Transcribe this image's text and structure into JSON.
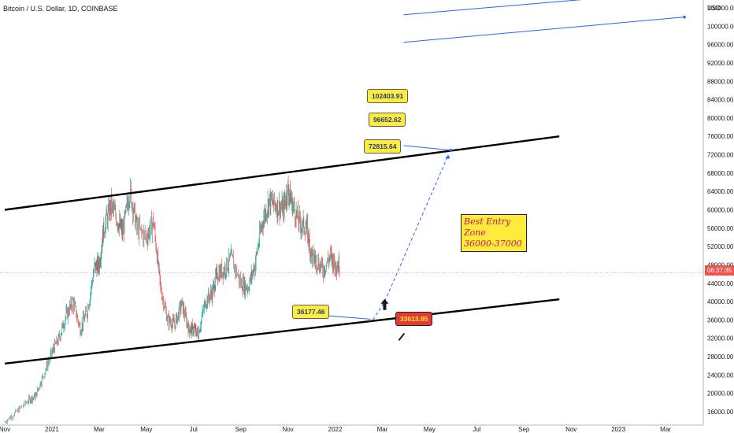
{
  "header": {
    "title": "Bitcoin / U.S. Dollar, 1D, COINBASE"
  },
  "price_axis": {
    "currency_label": "USD",
    "current_label": "06:37:35"
  },
  "annotations": {
    "target_1": "102403.91",
    "target_2": "96652.62",
    "target_3": "72815.64",
    "support_level": "36177.46",
    "stop_level": "33613.85",
    "zone_title": "Best Entry Zone",
    "zone_range": "36000-37000"
  },
  "colors": {
    "channel": "#000000",
    "projection": "#2962ff",
    "callout_fill": "#ffeb3b",
    "stop_fill": "#e53935",
    "zone_text": "#c2185b",
    "up_candle": "#26a69a",
    "down_candle": "#ef5350"
  },
  "chart_data": {
    "type": "line",
    "title": "Bitcoin / U.S. Dollar, 1D, COINBASE",
    "xlabel": "",
    "ylabel": "",
    "ylim": [
      16000,
      108000
    ],
    "y_ticks": [
      "16000.00",
      "20000.00",
      "24000.00",
      "28000.00",
      "32000.00",
      "36000.00",
      "40000.00",
      "44000.00",
      "48000.00",
      "52000.00",
      "56000.00",
      "60000.00",
      "64000.00",
      "68000.00",
      "72000.00",
      "76000.00",
      "80000.00",
      "84000.00",
      "88000.00",
      "92000.00",
      "96000.00",
      "100000.00",
      "104000.00"
    ],
    "y_tick_values": [
      16000,
      20000,
      24000,
      28000,
      32000,
      36000,
      40000,
      44000,
      48000,
      52000,
      56000,
      60000,
      64000,
      68000,
      72000,
      76000,
      80000,
      84000,
      88000,
      92000,
      96000,
      100000,
      104000
    ],
    "x_ticks": [
      "Nov",
      "2021",
      "Mar",
      "May",
      "Jul",
      "Sep",
      "Nov",
      "2022",
      "Mar",
      "May",
      "Jul",
      "Sep",
      "Nov",
      "2023",
      "Mar"
    ],
    "x_tick_values": [
      0,
      2,
      4,
      6,
      8,
      10,
      12,
      14,
      16,
      18,
      20,
      22,
      24,
      26,
      28
    ],
    "series": [
      {
        "x": [
          0,
          0.5,
          1,
          1.3,
          1.6,
          2,
          2.3,
          2.6,
          2.9,
          3.2,
          3.5,
          3.8,
          4.0,
          4.2,
          4.5,
          4.8,
          5.0,
          5.3,
          5.6,
          6.0,
          6.3,
          6.6,
          6.9,
          7.2,
          7.5,
          7.8,
          8.0,
          8.2,
          8.5,
          8.8,
          9.0,
          9.3,
          9.6,
          10.0,
          10.3,
          10.6,
          10.9,
          11.2,
          11.5,
          11.8,
          12.0,
          12.2,
          12.5,
          12.8,
          13.0,
          13.2,
          13.5,
          13.8,
          14.0,
          14.2
        ],
        "values": [
          13800,
          16000,
          18500,
          19400,
          23500,
          29000,
          32000,
          37000,
          40000,
          34000,
          38000,
          47500,
          48000,
          56000,
          61000,
          57500,
          55000,
          64500,
          56000,
          54000,
          57500,
          43000,
          36000,
          35000,
          39500,
          34000,
          34000,
          33000,
          40000,
          42000,
          46000,
          47000,
          49500,
          44000,
          43000,
          48000,
          57000,
          62000,
          61000,
          60000,
          64500,
          61000,
          57000,
          56000,
          50000,
          49000,
          47000,
          50000,
          48000,
          48000
        ]
      }
    ],
    "channel_upper": {
      "x": [
        0,
        23.5
      ],
      "values": [
        60000,
        76000
      ]
    },
    "channel_lower": {
      "x": [
        0,
        23.5
      ],
      "values": [
        26500,
        40500
      ]
    },
    "projection_path": {
      "x": [
        15.6,
        16.1,
        18.8
      ],
      "values": [
        36000,
        40000,
        72000
      ]
    },
    "target_lines": [
      {
        "x": [
          16.9,
          29.5
        ],
        "values": [
          102500,
          108000
        ]
      },
      {
        "x": [
          16.9,
          28.8
        ],
        "values": [
          96500,
          102000
        ]
      },
      {
        "x": [
          16.9,
          18.9
        ],
        "values": [
          74000,
          73000
        ]
      }
    ],
    "support_pointer": {
      "x": [
        13.5,
        15.5
      ],
      "values": [
        37000,
        36177
      ]
    },
    "current_price": 46300
  }
}
